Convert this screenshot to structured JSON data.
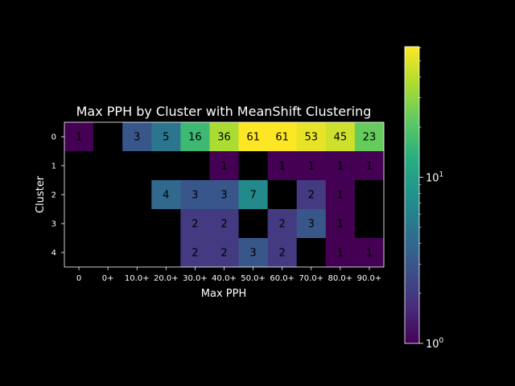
{
  "chart_data": {
    "type": "heatmap",
    "title": "Max PPH by Cluster with MeanShift Clustering",
    "xlabel": "Max PPH",
    "ylabel": "Cluster",
    "x_categories": [
      "0",
      "0+",
      "10.0+",
      "20.0+",
      "30.0+",
      "40.0+",
      "50.0+",
      "60.0+",
      "70.0+",
      "80.0+",
      "90.0+"
    ],
    "y_categories": [
      "0",
      "1",
      "2",
      "3",
      "4"
    ],
    "values": [
      [
        1,
        null,
        3,
        5,
        16,
        36,
        61,
        61,
        53,
        45,
        23
      ],
      [
        null,
        null,
        null,
        null,
        null,
        1,
        null,
        1,
        1,
        1,
        1
      ],
      [
        null,
        null,
        null,
        4,
        3,
        3,
        7,
        null,
        2,
        1,
        null
      ],
      [
        null,
        null,
        null,
        null,
        2,
        2,
        null,
        2,
        3,
        1,
        null
      ],
      [
        null,
        null,
        null,
        null,
        2,
        2,
        3,
        2,
        null,
        1,
        1
      ]
    ],
    "colormap": "viridis",
    "color_scale": "log",
    "color_range": [
      1,
      61
    ],
    "colorbar_ticks": [
      "10^0",
      "10^1"
    ],
    "empty_cell_color": "#000000",
    "grid": false
  },
  "colors": {
    "background": "#000000",
    "text": "#ffffff",
    "axis": "#ffffff",
    "annotation": "#000000"
  }
}
